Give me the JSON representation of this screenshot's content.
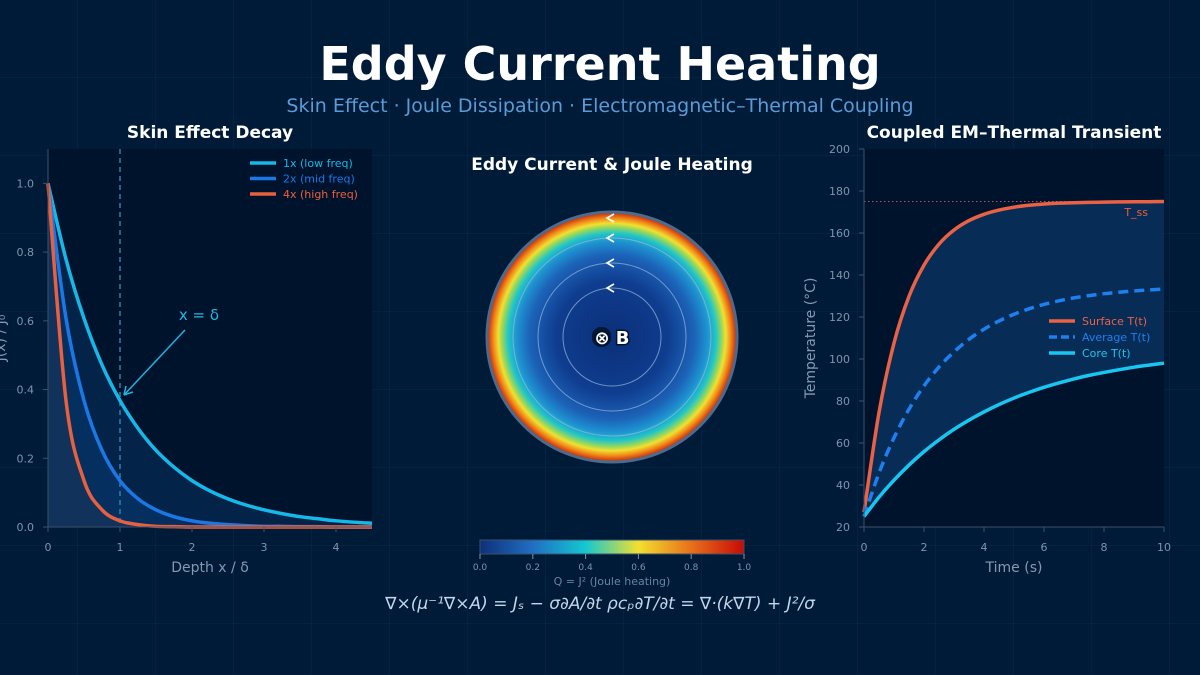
{
  "header": {
    "title": "Eddy Current Heating",
    "subtitle": "Skin Effect  ·  Joule Dissipation  ·  Electromagnetic–Thermal Coupling"
  },
  "equations": "∇×(μ⁻¹∇×A) = Jₛ − σ∂A/∂t      ρcₚ∂T/∂t = ∇·(k∇T) + J²/σ",
  "colors": {
    "low": "#15b8e8",
    "mid": "#1a78e6",
    "high": "#e8603f",
    "core": "#19c6f2",
    "avg": "#1e7ff0",
    "surface": "#ea6246"
  },
  "chart_data": [
    {
      "type": "line",
      "title": "Skin Effect Decay",
      "xlabel": "Depth  x / δ",
      "ylabel": "J(x) / J₀",
      "xlim": [
        0,
        4.5
      ],
      "ylim": [
        0,
        1.1
      ],
      "xticks": [
        "0",
        "1",
        "2",
        "3",
        "4"
      ],
      "yticks": [
        "0.0",
        "0.2",
        "0.4",
        "0.6",
        "0.8",
        "1.0"
      ],
      "legend_position": "top-right",
      "annotation": {
        "text": "x = δ",
        "x": 1,
        "y": 0.368
      },
      "x": [
        0,
        0.25,
        0.5,
        0.75,
        1,
        1.25,
        1.5,
        1.75,
        2,
        2.25,
        2.5,
        2.75,
        3,
        3.25,
        3.5,
        3.75,
        4,
        4.25,
        4.5
      ],
      "series": [
        {
          "name": "1x (low freq)",
          "color_key": "low",
          "values": [
            1,
            0.779,
            0.607,
            0.472,
            0.368,
            0.287,
            0.223,
            0.174,
            0.135,
            0.105,
            0.082,
            0.064,
            0.05,
            0.039,
            0.03,
            0.024,
            0.018,
            0.014,
            0.011
          ]
        },
        {
          "name": "2x (mid freq)",
          "color_key": "mid",
          "values": [
            1,
            0.607,
            0.368,
            0.223,
            0.135,
            0.082,
            0.05,
            0.03,
            0.018,
            0.011,
            0.007,
            0.004,
            0.002,
            0.002,
            0.001,
            0.001,
            0,
            0,
            0
          ]
        },
        {
          "name": "4x (high freq)",
          "color_key": "high",
          "values": [
            1,
            0.368,
            0.135,
            0.05,
            0.018,
            0.007,
            0.002,
            0.001,
            0,
            0,
            0,
            0,
            0,
            0,
            0,
            0,
            0,
            0,
            0
          ]
        }
      ]
    },
    {
      "type": "heatmap",
      "title": "Eddy Current & Joule Heating",
      "center_label": "⊗ B",
      "colorbar_label": "Q = J² (Joule heating)",
      "colorbar_ticks": [
        "0.0",
        "0.2",
        "0.4",
        "0.6",
        "0.8",
        "1.0"
      ],
      "range": [
        0,
        1
      ]
    },
    {
      "type": "line",
      "title": "Coupled EM–Thermal Transient",
      "xlabel": "Time (s)",
      "ylabel": "Temperature (°C)",
      "xlim": [
        0,
        10
      ],
      "ylim": [
        20,
        200
      ],
      "xticks": [
        "0",
        "2",
        "4",
        "6",
        "8",
        "10"
      ],
      "yticks": [
        "20",
        "40",
        "60",
        "80",
        "100",
        "120",
        "140",
        "160",
        "180",
        "200"
      ],
      "legend_position": "center-right",
      "reference_line": {
        "label": "T_ss",
        "y": 175
      },
      "x": [
        0,
        0.5,
        1,
        1.5,
        2,
        2.5,
        3,
        3.5,
        4,
        4.5,
        5,
        5.5,
        6,
        6.5,
        7,
        7.5,
        8,
        8.5,
        9,
        9.5,
        10
      ],
      "series": [
        {
          "name": "Surface T(t)",
          "color_key": "surface",
          "style": "solid",
          "values": [
            27,
            74.5,
            107.6,
            129.8,
            144.7,
            154.7,
            161.4,
            165.9,
            168.9,
            170.9,
            172.3,
            173.2,
            173.8,
            174.2,
            174.4,
            174.6,
            174.7,
            174.8,
            174.9,
            174.9,
            175
          ]
        },
        {
          "name": "Average T(t)",
          "color_key": "avg",
          "style": "dashed",
          "values": [
            25,
            45.7,
            62.5,
            76.1,
            87.2,
            96.2,
            103.4,
            109.4,
            114.2,
            118.1,
            121.3,
            123.9,
            126,
            127.7,
            129.1,
            130.2,
            131.1,
            131.8,
            132.4,
            132.9,
            133.3
          ]
        },
        {
          "name": "Core T(t)",
          "color_key": "core",
          "style": "solid",
          "values": [
            25,
            34.2,
            42.3,
            49.5,
            55.9,
            61.5,
            66.5,
            70.9,
            74.8,
            78.3,
            81.4,
            84.1,
            86.5,
            88.6,
            90.5,
            92.2,
            93.6,
            94.9,
            96.1,
            97.1,
            98.0
          ]
        }
      ]
    }
  ]
}
